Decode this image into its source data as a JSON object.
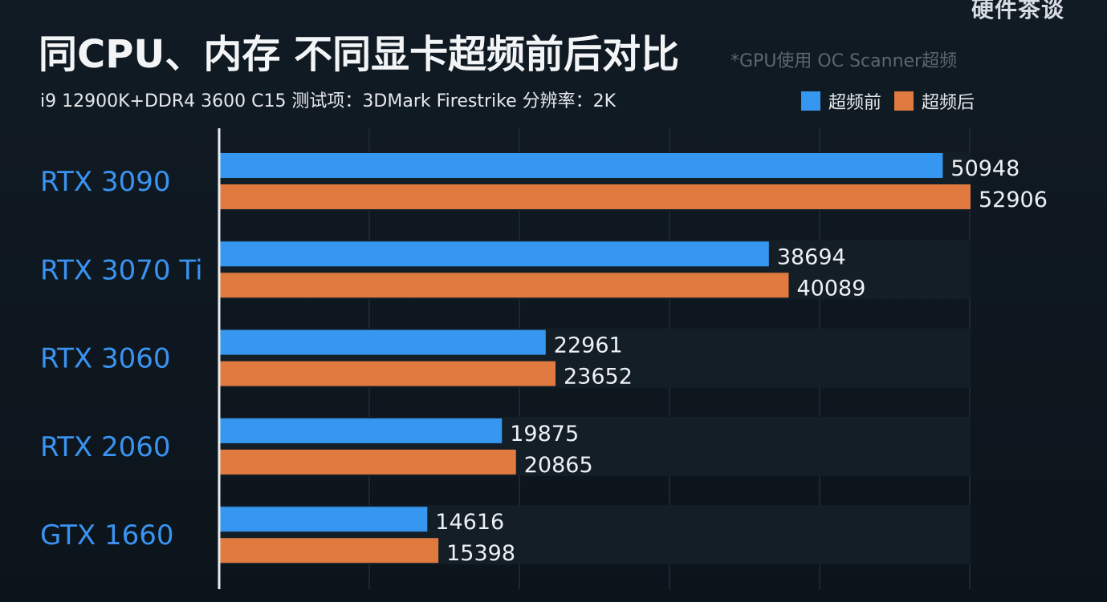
{
  "watermark": "硬件茶谈",
  "title": "同CPU、内存 不同显卡超频前后对比",
  "note": "*GPU使用 OC Scanner超频",
  "subtitle": "i9 12900K+DDR4 3600 C15  测试项：3DMark  Firestrike  分辨率：2K",
  "colors": {
    "before": "#3597ef",
    "after": "#e07a3f"
  },
  "chart_data": {
    "type": "bar",
    "orientation": "horizontal",
    "categories": [
      "RTX 3090",
      "RTX 3070 Ti",
      "RTX 3060",
      "RTX 2060",
      "GTX 1660"
    ],
    "series": [
      {
        "name": "超频前",
        "values": [
          50948,
          38694,
          22961,
          19875,
          14616
        ]
      },
      {
        "name": "超频后",
        "values": [
          52906,
          40089,
          23652,
          20865,
          15398
        ]
      }
    ],
    "xlim": [
      0,
      52906
    ],
    "legend": "top-right",
    "grid": true
  }
}
